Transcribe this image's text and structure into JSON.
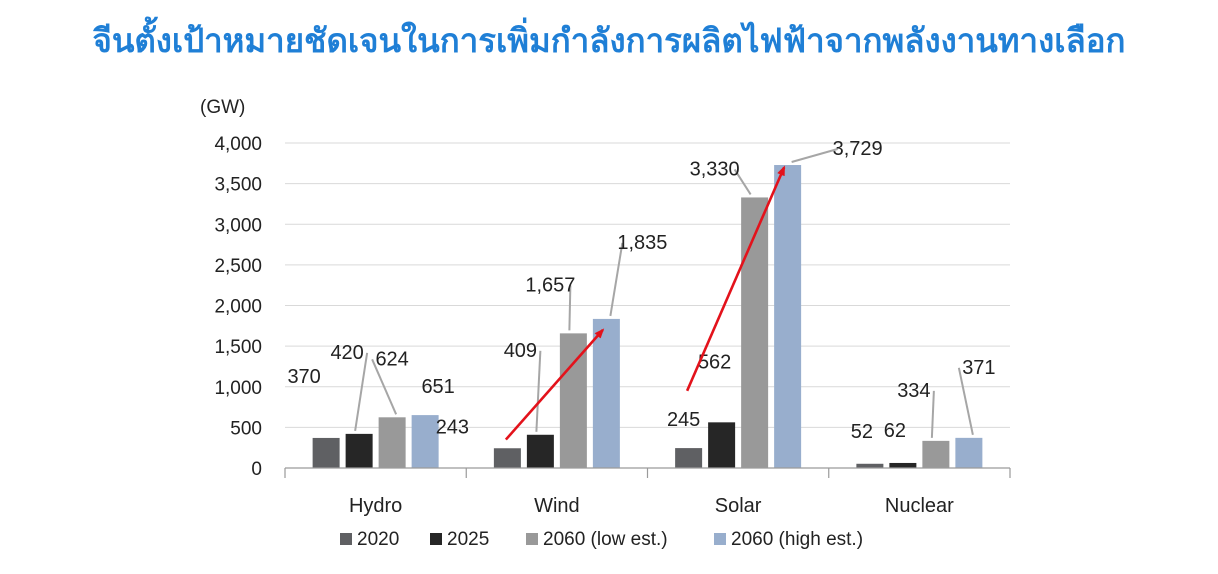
{
  "page": {
    "title": "จีนตั้งเป้าหมายชัดเจนในการเพิ่มกำลังการผลิตไฟฟ้าจากพลังงานทางเลือก"
  },
  "chart_data": {
    "type": "bar",
    "title": "",
    "unit_label": "(GW)",
    "xlabel": "",
    "ylabel": "",
    "ylim": [
      0,
      4000
    ],
    "yticks": [
      0,
      500,
      1000,
      1500,
      2000,
      2500,
      3000,
      3500,
      4000
    ],
    "ytick_labels": [
      "0",
      "500",
      "1,000",
      "1,500",
      "2,000",
      "2,500",
      "3,000",
      "3,500",
      "4,000"
    ],
    "categories": [
      "Hydro",
      "Wind",
      "Solar",
      "Nuclear"
    ],
    "series": [
      {
        "name": "2020",
        "color": "#5f6063",
        "values": [
          370,
          243,
          245,
          52
        ],
        "labels": [
          "370",
          "243",
          "245",
          "52"
        ]
      },
      {
        "name": "2025",
        "color": "#262626",
        "values": [
          420,
          409,
          562,
          62
        ],
        "labels": [
          "420",
          "409",
          "562",
          "62"
        ]
      },
      {
        "name": "2060 (low est.)",
        "color": "#999999",
        "values": [
          624,
          1657,
          3330,
          334
        ],
        "labels": [
          "624",
          "1,657",
          "3,330",
          "334"
        ]
      },
      {
        "name": "2060 (high est.)",
        "color": "#98aecd",
        "values": [
          651,
          1835,
          3729,
          371
        ],
        "labels": [
          "651",
          "1,835",
          "3,729",
          "371"
        ]
      }
    ],
    "grid": true,
    "legend_position": "bottom",
    "annotations": [
      {
        "type": "arrow",
        "color": "#e3121b",
        "from": {
          "category": "Wind",
          "value": 350
        },
        "to": {
          "category": "Wind",
          "value": 1700
        }
      },
      {
        "type": "arrow",
        "color": "#e3121b",
        "from": {
          "category": "Solar",
          "value": 950
        },
        "to": {
          "category": "Solar",
          "value": 3700
        }
      }
    ]
  }
}
